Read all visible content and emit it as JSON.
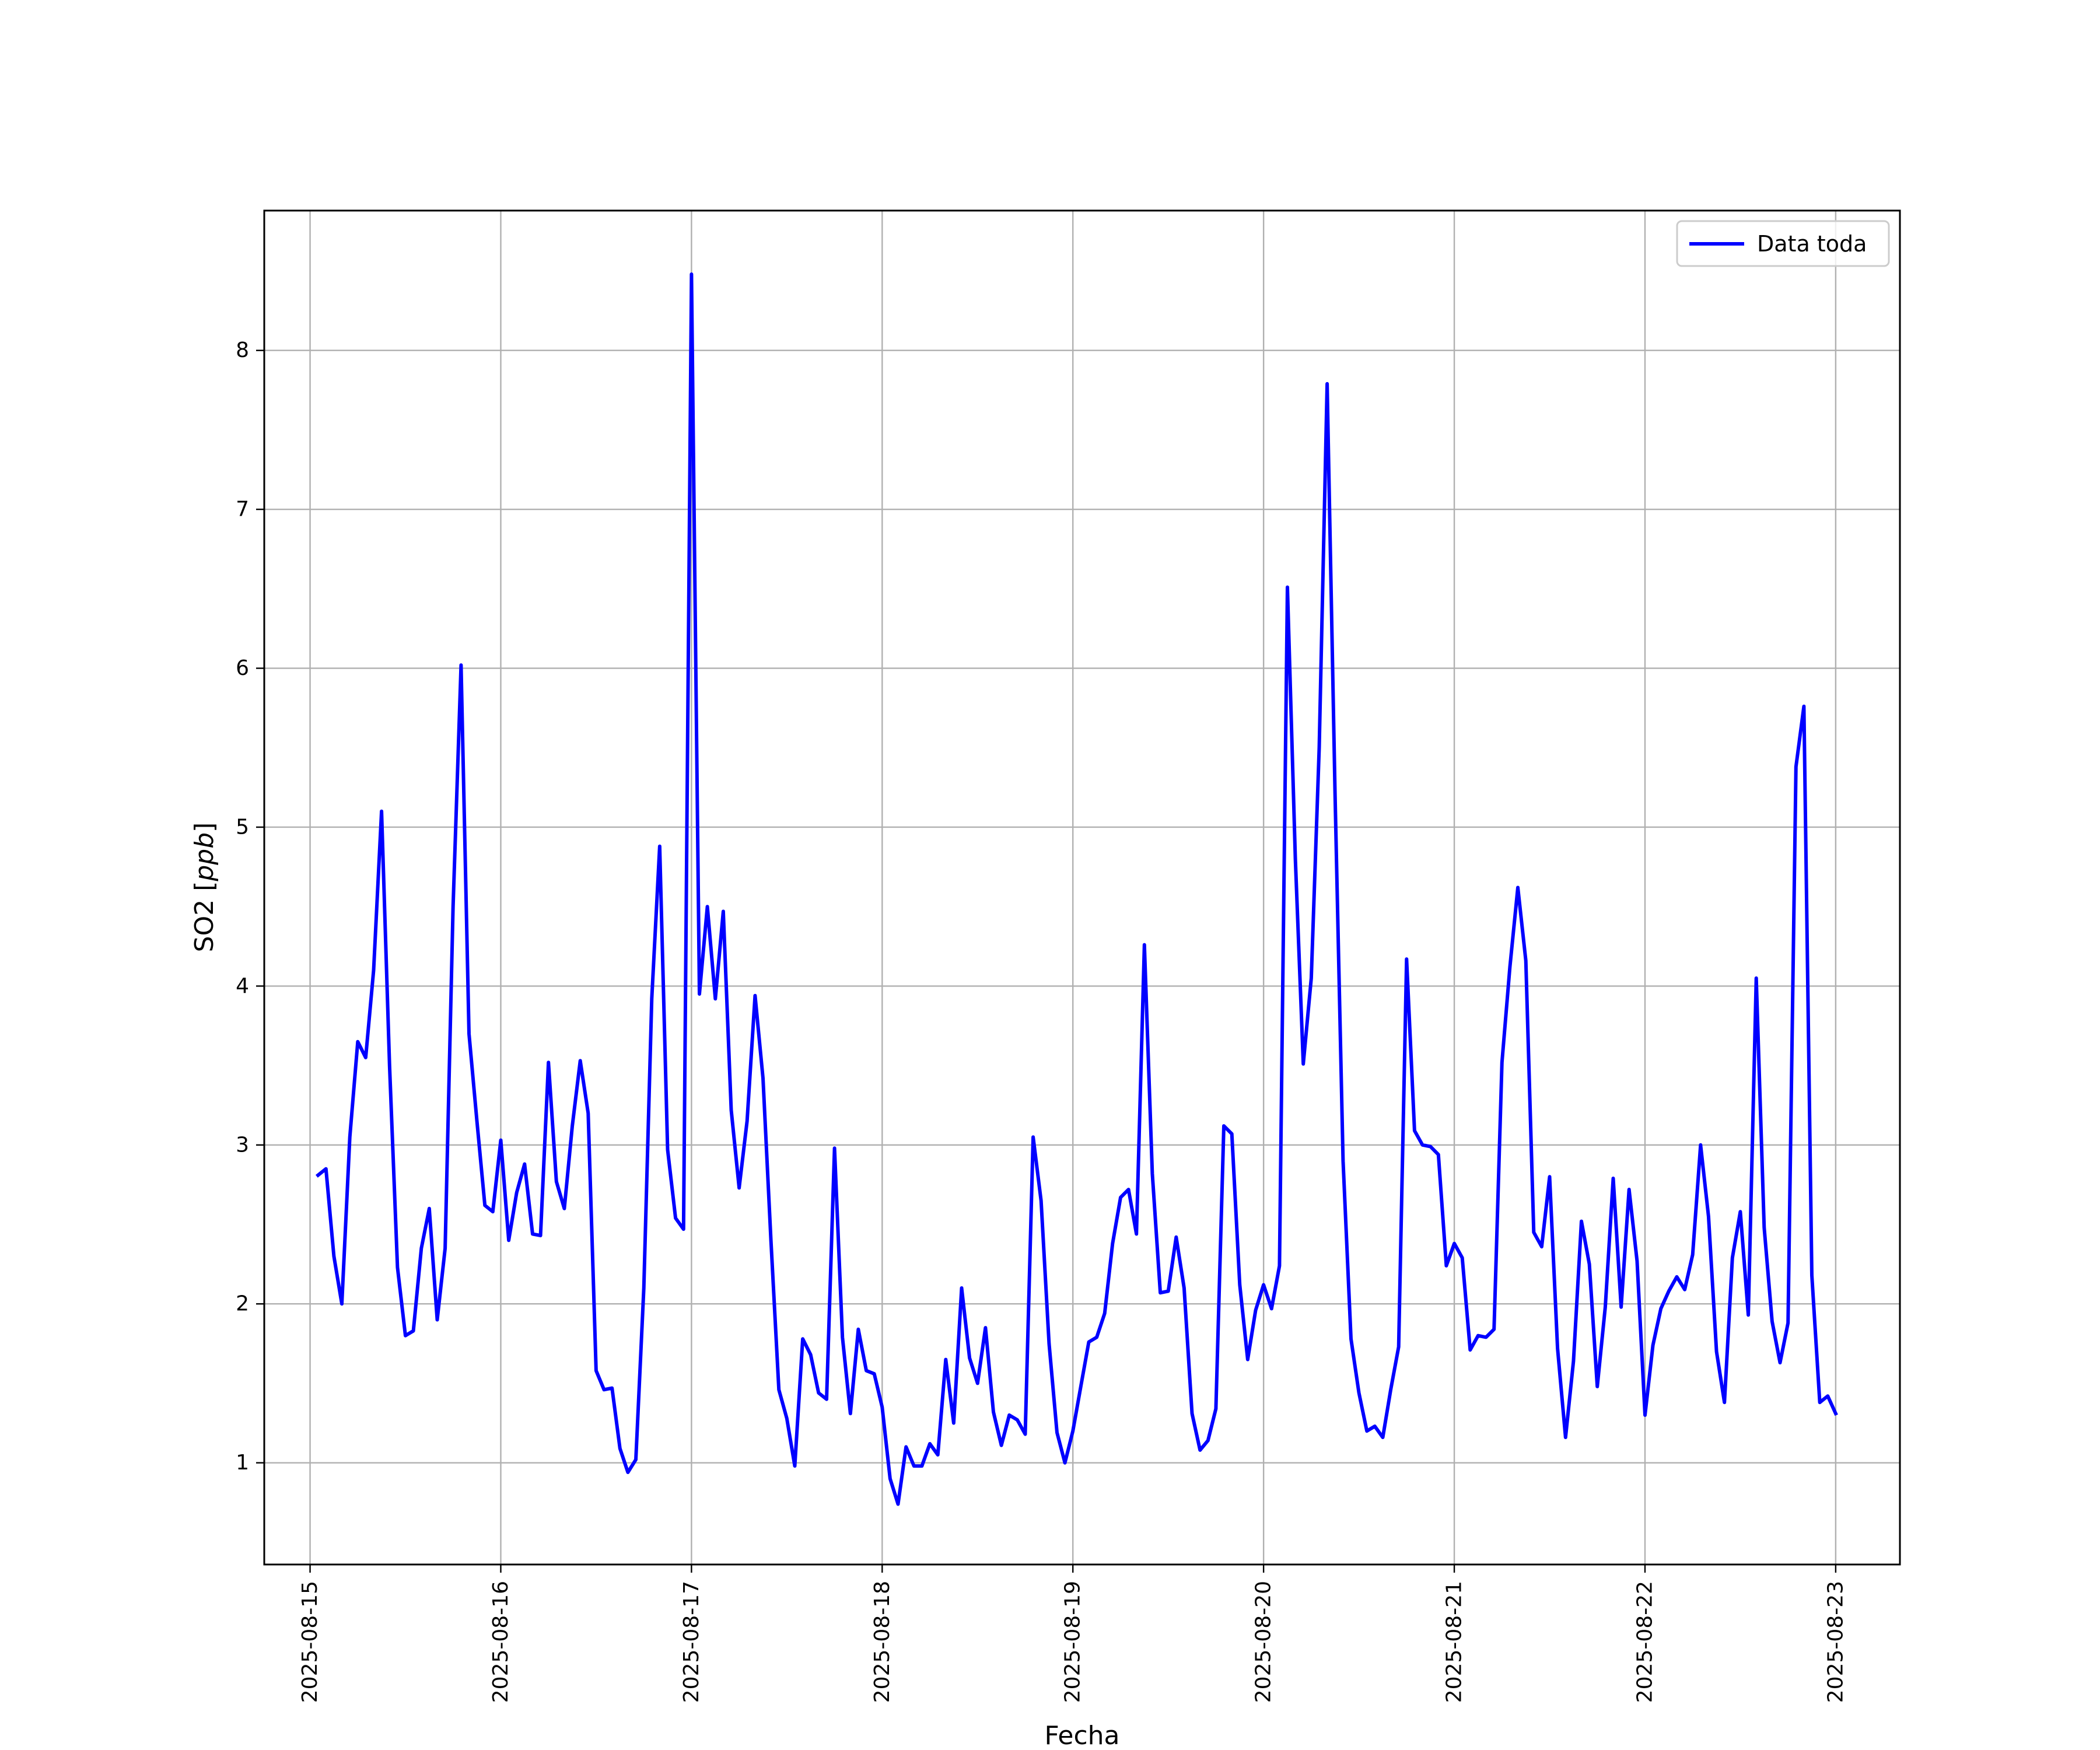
{
  "chart_data": {
    "type": "line",
    "xlabel": "Fecha",
    "ylabel": "SO2 [ppb]",
    "ylabel_main": "SO2 ",
    "ylabel_unit": "ppb",
    "x_tick_labels": [
      "2025-08-15",
      "2025-08-16",
      "2025-08-17",
      "2025-08-18",
      "2025-08-19",
      "2025-08-20",
      "2025-08-21",
      "2025-08-22",
      "2025-08-23"
    ],
    "y_tick_labels": [
      "1",
      "2",
      "3",
      "4",
      "5",
      "6",
      "7",
      "8"
    ],
    "xlim": [
      "2025-08-14T18:14",
      "2025-08-23T08:05"
    ],
    "ylim": [
      0.36,
      8.88
    ],
    "grid": true,
    "legend_position": "upper-right",
    "series": [
      {
        "name": "Data toda",
        "color": "#0000ff",
        "x_start": "2025-08-15T01:00",
        "x_step_hours": 1,
        "values": [
          2.81,
          2.85,
          2.3,
          2.0,
          3.05,
          3.65,
          3.55,
          4.1,
          5.1,
          3.5,
          2.23,
          1.8,
          1.83,
          2.35,
          2.6,
          1.9,
          2.35,
          4.5,
          6.02,
          3.7,
          3.15,
          2.62,
          2.58,
          3.03,
          2.4,
          2.7,
          2.88,
          2.44,
          2.43,
          3.52,
          2.77,
          2.6,
          3.12,
          3.53,
          3.2,
          1.58,
          1.46,
          1.47,
          1.09,
          0.94,
          1.02,
          2.1,
          3.92,
          4.88,
          2.97,
          2.54,
          2.47,
          8.48,
          3.95,
          4.5,
          3.92,
          4.47,
          3.22,
          2.73,
          3.15,
          3.94,
          3.42,
          2.4,
          1.46,
          1.28,
          0.98,
          1.78,
          1.68,
          1.44,
          1.4,
          2.98,
          1.79,
          1.31,
          1.84,
          1.58,
          1.56,
          1.35,
          0.9,
          0.74,
          1.1,
          0.98,
          0.98,
          1.12,
          1.05,
          1.65,
          1.25,
          2.1,
          1.66,
          1.5,
          1.85,
          1.32,
          1.11,
          1.3,
          1.27,
          1.18,
          3.05,
          2.65,
          1.75,
          1.19,
          1.0,
          1.2,
          1.48,
          1.76,
          1.79,
          1.94,
          2.38,
          2.67,
          2.72,
          2.44,
          4.26,
          2.82,
          2.07,
          2.08,
          2.42,
          2.1,
          1.31,
          1.08,
          1.14,
          1.34,
          3.12,
          3.07,
          2.12,
          1.65,
          1.96,
          2.12,
          1.97,
          2.24,
          6.51,
          4.8,
          3.51,
          4.05,
          5.5,
          7.79,
          5.2,
          2.9,
          1.78,
          1.44,
          1.2,
          1.23,
          1.16,
          1.46,
          1.73,
          4.17,
          3.09,
          3.0,
          2.99,
          2.94,
          2.24,
          2.38,
          2.29,
          1.71,
          1.8,
          1.79,
          1.84,
          3.52,
          4.12,
          4.62,
          4.16,
          2.45,
          2.36,
          2.8,
          1.72,
          1.16,
          1.64,
          2.52,
          2.25,
          1.48,
          1.98,
          2.79,
          1.98,
          2.72,
          2.27,
          1.3,
          1.74,
          1.97,
          2.08,
          2.17,
          2.09,
          2.31,
          3.0,
          2.55,
          1.7,
          1.38,
          2.29,
          2.58,
          1.93,
          4.05,
          2.48,
          1.89,
          1.63,
          1.88,
          5.38,
          5.76,
          2.18,
          1.38,
          1.42,
          1.31
        ]
      }
    ]
  }
}
